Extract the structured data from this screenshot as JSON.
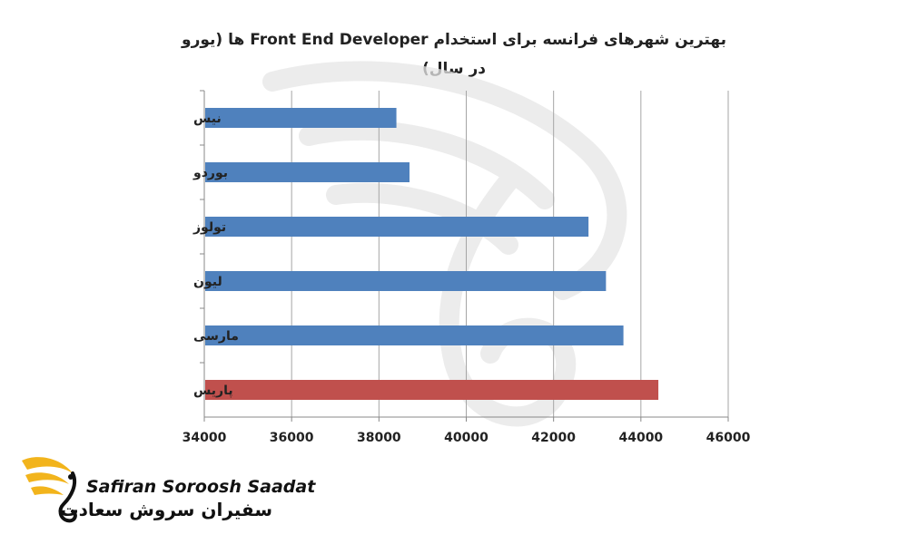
{
  "chart_data": {
    "type": "bar",
    "orientation": "horizontal",
    "title": "بهترین شهرهای فرانسه برای استخدام Front End Developer ها (یورو در سال)",
    "title_lines": [
      "بهترین شهرهای فرانسه برای استخدام Front End Developer ها (یورو",
      "در سال)"
    ],
    "categories": [
      "نیس",
      "بوردو",
      "تولوز",
      "لیون",
      "مارسی",
      "پاریس"
    ],
    "values": [
      38400,
      38700,
      42800,
      43200,
      43600,
      44400
    ],
    "highlight_index": 5,
    "xlim": [
      34000,
      46000
    ],
    "xticks": [
      "34000",
      "36000",
      "38000",
      "40000",
      "42000",
      "44000",
      "46000"
    ],
    "xlabel": "",
    "ylabel": "",
    "grid": "vertical",
    "legend": "none",
    "colors": {
      "bar": "#4F81BD",
      "highlight": "#C0504D",
      "grid": "#a6a6a6"
    }
  },
  "logo": {
    "latin": "Safiran Soroosh Saadat",
    "persian": "سفیران سروش سعادت",
    "colors": {
      "wing": "#F2B41C",
      "text": "#111111"
    }
  }
}
